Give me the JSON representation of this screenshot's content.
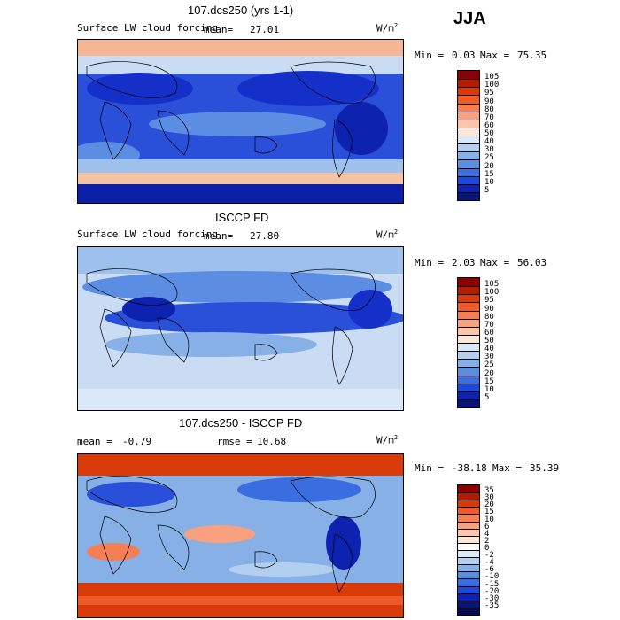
{
  "season": "JJA",
  "panels": [
    {
      "title": "107.dcs250 (yrs 1-1)",
      "variable": "Surface LW cloud forcing",
      "mean_label": "mean=",
      "mean_value": "27.01",
      "units_base": "W/m",
      "units_exp": "2",
      "min_label": "Min =",
      "min_value": "0.03",
      "max_label": "Max =",
      "max_value": "75.35",
      "colorbar_ticks": [
        "105",
        "100",
        "95",
        "90",
        "80",
        "70",
        "60",
        "50",
        "40",
        "30",
        "25",
        "20",
        "15",
        "10",
        "5"
      ],
      "colorbar_colors": [
        "#8b0000",
        "#b41c00",
        "#d93a0a",
        "#ef5a2a",
        "#f57e55",
        "#f9a17f",
        "#fcc4a9",
        "#fde6d6",
        "#dbe8f8",
        "#b3cff0",
        "#86b0e6",
        "#5a8ee0",
        "#3a6ee0",
        "#1f47d8",
        "#0a22b5",
        "#081577"
      ]
    },
    {
      "title": "ISCCP FD",
      "variable": "Surface LW cloud forcing",
      "mean_label": "mean=",
      "mean_value": "27.80",
      "units_base": "W/m",
      "units_exp": "2",
      "min_label": "Min =",
      "min_value": "2.03",
      "max_label": "Max =",
      "max_value": "56.03",
      "colorbar_ticks": [
        "105",
        "100",
        "95",
        "90",
        "80",
        "70",
        "60",
        "50",
        "40",
        "30",
        "25",
        "20",
        "15",
        "10",
        "5"
      ],
      "colorbar_colors": [
        "#8b0000",
        "#b41c00",
        "#d93a0a",
        "#ef5a2a",
        "#f57e55",
        "#f9a17f",
        "#fcc4a9",
        "#fde6d6",
        "#dbe8f8",
        "#b3cff0",
        "#86b0e6",
        "#5a8ee0",
        "#3a6ee0",
        "#1f47d8",
        "#0a22b5",
        "#081577"
      ]
    },
    {
      "title": "107.dcs250 - ISCCP FD",
      "mean_label": "mean =",
      "mean_value": "-0.79",
      "rmse_label": "rmse =",
      "rmse_value": "10.68",
      "units_base": "W/m",
      "units_exp": "2",
      "min_label": "Min =",
      "min_value": "-38.18",
      "max_label": "Max =",
      "max_value": "35.39",
      "colorbar_ticks": [
        "35",
        "30",
        "20",
        "15",
        "10",
        "6",
        "4",
        "2",
        "0",
        "-2",
        "-4",
        "-6",
        "-10",
        "-15",
        "-20",
        "-30",
        "-35"
      ],
      "colorbar_colors": [
        "#8b0000",
        "#b41c00",
        "#d93a0a",
        "#ef5a2a",
        "#f57e55",
        "#f9a17f",
        "#fcc4a9",
        "#fde6d6",
        "#ffffff",
        "#dbe8f8",
        "#b3cff0",
        "#86b0e6",
        "#5a8ee0",
        "#3a6ee0",
        "#1f47d8",
        "#0a22b5",
        "#081577",
        "#050c55"
      ]
    }
  ]
}
